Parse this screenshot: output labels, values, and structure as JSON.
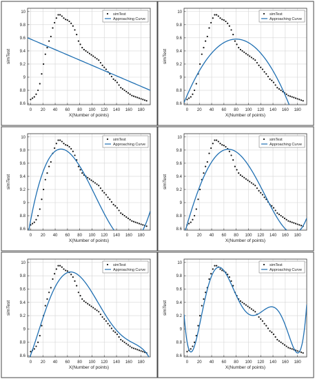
{
  "chart_data": [
    {
      "type": "scatter",
      "xlabel": "X(Number of points)",
      "ylabel": "simTest",
      "xlim": [
        -5,
        195
      ],
      "ylim": [
        8.58,
        10.05
      ],
      "xticks": [
        0,
        20,
        40,
        60,
        80,
        100,
        120,
        140,
        160,
        180
      ],
      "yticks": [
        8.6,
        8.8,
        9,
        9.2,
        9.4,
        9.6,
        9.8,
        10
      ],
      "ytick_labels": [
        "8.6",
        "8.8",
        "9",
        "9.2",
        "9.4",
        "9.6",
        "9.8",
        "10"
      ],
      "legend": {
        "position": "top-right",
        "entries": [
          "simTest",
          "Approaching Curve"
        ]
      },
      "grid": true,
      "fit": {
        "kind": "linear",
        "coef": [
          9.58,
          -0.004
        ]
      }
    },
    {
      "type": "scatter",
      "xlabel": "X(Number of points)",
      "ylabel": "simTest",
      "xlim": [
        -5,
        195
      ],
      "ylim": [
        8.58,
        10.05
      ],
      "xticks": [
        0,
        20,
        40,
        60,
        80,
        100,
        120,
        140,
        160,
        180
      ],
      "yticks": [
        8.6,
        8.8,
        9,
        9.2,
        9.4,
        9.6,
        9.8,
        10
      ],
      "ytick_labels": [
        "8.6",
        "8.8",
        "9",
        "9.2",
        "9.4",
        "9.6",
        "9.8",
        "10"
      ],
      "legend": {
        "position": "top-right",
        "entries": [
          "simTest",
          "Approaching Curve"
        ]
      },
      "grid": true,
      "fit": {
        "kind": "quadratic",
        "coef": [
          9.58,
          -0.000134,
          80
        ]
      }
    },
    {
      "type": "scatter",
      "xlabel": "X(Number of points)",
      "ylabel": "simTest",
      "xlim": [
        -5,
        195
      ],
      "ylim": [
        8.58,
        10.05
      ],
      "xticks": [
        0,
        20,
        40,
        60,
        80,
        100,
        120,
        140,
        160,
        180
      ],
      "yticks": [
        8.6,
        8.8,
        9,
        9.2,
        9.4,
        9.6,
        9.8,
        10
      ],
      "ytick_labels": [
        "8.6",
        "8.8",
        "9",
        "9.2",
        "9.4",
        "9.6",
        "9.8",
        "10"
      ],
      "legend": {
        "position": "top-right",
        "entries": [
          "simTest",
          "Approaching Curve"
        ]
      },
      "grid": true,
      "fit": {
        "kind": "cubic",
        "points": [
          [
            -2,
            8.63
          ],
          [
            60,
            9.78
          ],
          [
            185,
            8.62
          ],
          [
            195,
            8.87
          ]
        ]
      }
    },
    {
      "type": "scatter",
      "xlabel": "X(Number of points)",
      "ylabel": "simTest",
      "xlim": [
        -5,
        195
      ],
      "ylim": [
        8.58,
        10.05
      ],
      "xticks": [
        0,
        20,
        40,
        60,
        80,
        100,
        120,
        140,
        160,
        180
      ],
      "yticks": [
        8.6,
        8.8,
        9,
        9.2,
        9.4,
        9.6,
        9.8,
        10
      ],
      "ytick_labels": [
        "8.6",
        "8.8",
        "9",
        "9.2",
        "9.4",
        "9.6",
        "9.8",
        "10"
      ],
      "legend": {
        "position": "top-right",
        "entries": [
          "simTest",
          "Approaching Curve"
        ]
      },
      "grid": true,
      "fit": {
        "kind": "quartic",
        "points": [
          [
            -2,
            8.6
          ],
          [
            60,
            9.8
          ],
          [
            120,
            9.24
          ],
          [
            188,
            8.63
          ]
        ]
      }
    },
    {
      "type": "scatter",
      "xlabel": "X(Number of points)",
      "ylabel": "simTest",
      "xlim": [
        -5,
        195
      ],
      "ylim": [
        8.58,
        10.05
      ],
      "xticks": [
        0,
        20,
        40,
        60,
        80,
        100,
        120,
        140,
        160,
        180
      ],
      "yticks": [
        8.6,
        8.8,
        9,
        9.2,
        9.4,
        9.6,
        9.8,
        10
      ],
      "ytick_labels": [
        "8.6",
        "8.8",
        "9",
        "9.2",
        "9.4",
        "9.6",
        "9.8",
        "10"
      ],
      "legend": {
        "position": "top-right",
        "entries": [
          "simTest",
          "Approaching Curve"
        ]
      },
      "grid": true,
      "fit": {
        "kind": "quintic",
        "points": [
          [
            -2,
            8.56
          ],
          [
            55,
            9.82
          ],
          [
            120,
            9.24
          ],
          [
            165,
            8.8
          ],
          [
            190,
            8.62
          ]
        ]
      }
    },
    {
      "type": "scatter",
      "xlabel": "X(Number of points)",
      "ylabel": "simTest",
      "xlim": [
        -5,
        195
      ],
      "ylim": [
        8.58,
        10.05
      ],
      "xticks": [
        0,
        20,
        40,
        60,
        80,
        100,
        120,
        140,
        160,
        180
      ],
      "yticks": [
        8.6,
        8.8,
        9,
        9.2,
        9.4,
        9.6,
        9.8,
        10
      ],
      "ytick_labels": [
        "8.6",
        "8.8",
        "9",
        "9.2",
        "9.4",
        "9.6",
        "9.8",
        "10"
      ],
      "legend": {
        "position": "top-right",
        "entries": [
          "simTest",
          "Approaching Curve"
        ]
      },
      "grid": true,
      "fit": {
        "kind": "sextic",
        "points": [
          [
            -5,
            9.22
          ],
          [
            5,
            8.66
          ],
          [
            55,
            9.92
          ],
          [
            120,
            9.25
          ],
          [
            180,
            8.64
          ],
          [
            193,
            9.15
          ]
        ]
      }
    }
  ],
  "sim_data": {
    "x": [
      0,
      3,
      6,
      9,
      12,
      15,
      18,
      21,
      24,
      27,
      30,
      33,
      36,
      39,
      42,
      45,
      48,
      51,
      54,
      57,
      60,
      63,
      66,
      69,
      72,
      75,
      78,
      81,
      84,
      87,
      90,
      93,
      96,
      99,
      102,
      105,
      108,
      111,
      114,
      117,
      120,
      123,
      126,
      129,
      132,
      135,
      138,
      141,
      144,
      147,
      150,
      153,
      156,
      159,
      162,
      165,
      168,
      171,
      174,
      177,
      180,
      183,
      186,
      189
    ],
    "y": [
      8.66,
      8.68,
      8.7,
      8.74,
      8.8,
      8.9,
      9.05,
      9.2,
      9.35,
      9.45,
      9.55,
      9.62,
      9.75,
      9.83,
      9.9,
      9.95,
      9.95,
      9.93,
      9.9,
      9.88,
      9.87,
      9.85,
      9.82,
      9.78,
      9.72,
      9.65,
      9.55,
      9.5,
      9.45,
      9.42,
      9.4,
      9.38,
      9.36,
      9.34,
      9.32,
      9.3,
      9.28,
      9.26,
      9.22,
      9.18,
      9.15,
      9.12,
      9.08,
      9.05,
      9.01,
      8.97,
      8.95,
      8.92,
      8.88,
      8.84,
      8.82,
      8.8,
      8.78,
      8.76,
      8.74,
      8.72,
      8.71,
      8.7,
      8.69,
      8.68,
      8.67,
      8.66,
      8.65,
      8.64
    ]
  }
}
